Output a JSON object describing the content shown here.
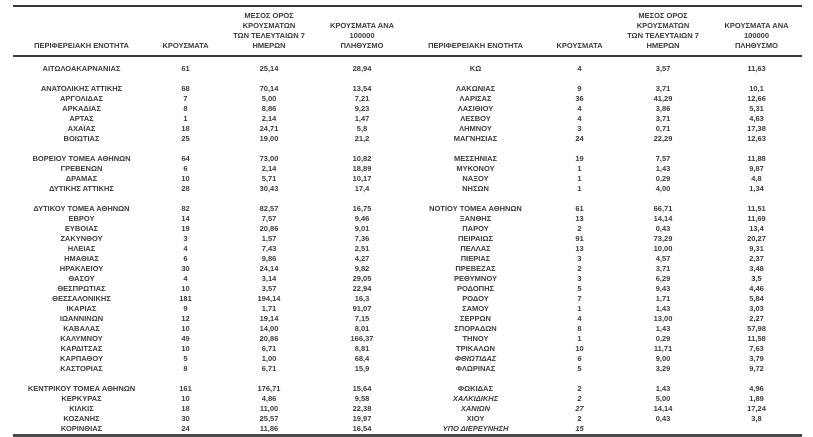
{
  "page": {
    "background": "#ffffff",
    "text_color": "#3d3d3d",
    "border_color": "#3a3a3a"
  },
  "table": {
    "headers": {
      "region": "ΠΕΡΙΦΕΡΕΙΑΚΗ ΕΝΟΤΗΤΑ",
      "cases": "ΚΡΟΥΣΜΑΤΑ",
      "avg7": "ΜΕΣΟΣ ΟΡΟΣ ΚΡΟΥΣΜΑΤΩΝ\nΤΩΝ ΤΕΛΕΥΤΑΙΩΝ 7\nΗΜΕΡΩΝ",
      "per100k": "ΚΡΟΥΣΜΑΤΑ ΑΝΑ 100000\nΠΛΗΘΥΣΜΟ"
    },
    "rows": [
      {
        "left": [
          "ΑΙΤΩΛΟΑΚΑΡΝΑΝΙΑΣ",
          "61",
          "25,14",
          "28,94"
        ],
        "right": [
          "ΚΩ",
          "4",
          "3,57",
          "11,63"
        ]
      },
      {
        "spacer": true
      },
      {
        "left": [
          "ΑΝΑΤΟΛΙΚΗΣ ΑΤΤΙΚΗΣ",
          "68",
          "70,14",
          "13,54"
        ],
        "right": [
          "ΛΑΚΩΝΙΑΣ",
          "9",
          "3,71",
          "10,1"
        ]
      },
      {
        "left": [
          "ΑΡΓΟΛΙΔΑΣ",
          "7",
          "5,00",
          "7,21"
        ],
        "right": [
          "ΛΑΡΙΣΑΣ",
          "36",
          "41,29",
          "12,66"
        ]
      },
      {
        "left": [
          "ΑΡΚΑΔΙΑΣ",
          "8",
          "8,86",
          "9,23"
        ],
        "right": [
          "ΛΑΣΙΘΙΟΥ",
          "4",
          "3,86",
          "5,31"
        ]
      },
      {
        "left": [
          "ΑΡΤΑΣ",
          "1",
          "2,14",
          "1,47"
        ],
        "right": [
          "ΛΕΣΒΟΥ",
          "4",
          "3,71",
          "4,63"
        ]
      },
      {
        "left": [
          "ΑΧΑΪΑΣ",
          "18",
          "24,71",
          "5,8"
        ],
        "right": [
          "ΛΗΜΝΟΥ",
          "3",
          "0,71",
          "17,38"
        ]
      },
      {
        "left": [
          "ΒΟΙΩΤΙΑΣ",
          "25",
          "19,00",
          "21,2"
        ],
        "right": [
          "ΜΑΓΝΗΣΙΑΣ",
          "24",
          "22,29",
          "12,63"
        ]
      },
      {
        "spacer": true
      },
      {
        "left": [
          "ΒΟΡΕΙΟΥ ΤΟΜΕΑ ΑΘΗΝΩΝ",
          "64",
          "73,00",
          "10,82"
        ],
        "right": [
          "ΜΕΣΣΗΝΙΑΣ",
          "19",
          "7,57",
          "11,88"
        ]
      },
      {
        "left": [
          "ΓΡΕΒΕΝΩΝ",
          "6",
          "2,14",
          "18,89"
        ],
        "right": [
          "ΜΥΚΟΝΟΥ",
          "1",
          "1,43",
          "9,87"
        ]
      },
      {
        "left": [
          "ΔΡΑΜΑΣ",
          "10",
          "5,71",
          "10,17"
        ],
        "right": [
          "ΝΑΞΟΥ",
          "1",
          "0,29",
          "4,8"
        ]
      },
      {
        "left": [
          "ΔΥΤΙΚΗΣ ΑΤΤΙΚΗΣ",
          "28",
          "30,43",
          "17,4"
        ],
        "right": [
          "ΝΗΣΩΝ",
          "1",
          "4,00",
          "1,34"
        ]
      },
      {
        "spacer": true
      },
      {
        "left": [
          "ΔΥΤΙΚΟΥ ΤΟΜΕΑ ΑΘΗΝΩΝ",
          "82",
          "82,57",
          "16,75"
        ],
        "right": [
          "ΝΟΤΙΟΥ ΤΟΜΕΑ ΑΘΗΝΩΝ",
          "61",
          "66,71",
          "11,51"
        ]
      },
      {
        "left": [
          "ΕΒΡΟΥ",
          "14",
          "7,57",
          "9,46"
        ],
        "right": [
          "ΞΑΝΘΗΣ",
          "13",
          "14,14",
          "11,69"
        ]
      },
      {
        "left": [
          "ΕΥΒΟΙΑΣ",
          "19",
          "20,86",
          "9,01"
        ],
        "right": [
          "ΠΑΡΟΥ",
          "2",
          "0,43",
          "13,4"
        ]
      },
      {
        "left": [
          "ΖΑΚΥΝΘΟΥ",
          "3",
          "1,57",
          "7,36"
        ],
        "right": [
          "ΠΕΙΡΑΙΩΣ",
          "91",
          "73,29",
          "20,27"
        ]
      },
      {
        "left": [
          "ΗΛΕΙΑΣ",
          "4",
          "7,43",
          "2,51"
        ],
        "right": [
          "ΠΕΛΛΑΣ",
          "13",
          "10,00",
          "9,31"
        ]
      },
      {
        "left": [
          "ΗΜΑΘΙΑΣ",
          "6",
          "9,86",
          "4,27"
        ],
        "right": [
          "ΠΙΕΡΙΑΣ",
          "3",
          "4,57",
          "2,37"
        ]
      },
      {
        "left": [
          "ΗΡΑΚΛΕΙΟΥ",
          "30",
          "24,14",
          "9,82"
        ],
        "right": [
          "ΠΡΕΒΕΖΑΣ",
          "2",
          "3,71",
          "3,48"
        ]
      },
      {
        "left": [
          "ΘΑΣΟΥ",
          "4",
          "3,14",
          "29,05"
        ],
        "right": [
          "ΡΕΘΥΜΝΟΥ",
          "3",
          "6,29",
          "3,5"
        ]
      },
      {
        "left": [
          "ΘΕΣΠΡΩΤΙΑΣ",
          "10",
          "3,57",
          "22,94"
        ],
        "right": [
          "ΡΟΔΟΠΗΣ",
          "5",
          "9,43",
          "4,46"
        ]
      },
      {
        "left": [
          "ΘΕΣΣΑΛΟΝΙΚΗΣ",
          "181",
          "194,14",
          "16,3"
        ],
        "right": [
          "ΡΟΔΟΥ",
          "7",
          "1,71",
          "5,84"
        ]
      },
      {
        "left": [
          "ΙΚΑΡΙΑΣ",
          "9",
          "1,71",
          "91,07"
        ],
        "right": [
          "ΣΑΜΟΥ",
          "1",
          "1,43",
          "3,03"
        ]
      },
      {
        "left": [
          "ΙΩΑΝΝΙΝΩΝ",
          "12",
          "19,14",
          "7,15"
        ],
        "right": [
          "ΣΕΡΡΩΝ",
          "4",
          "13,00",
          "2,27"
        ]
      },
      {
        "left": [
          "ΚΑΒΑΛΑΣ",
          "10",
          "14,00",
          "8,01"
        ],
        "right": [
          "ΣΠΟΡΑΔΩΝ",
          "8",
          "1,43",
          "57,98"
        ]
      },
      {
        "left": [
          "ΚΑΛΥΜΝΟΥ",
          "49",
          "20,86",
          "166,37"
        ],
        "right": [
          "ΤΗΝΟΥ",
          "1",
          "0,29",
          "11,58"
        ]
      },
      {
        "left": [
          "ΚΑΡΔΙΤΣΑΣ",
          "10",
          "6,71",
          "8,81"
        ],
        "right": [
          "ΤΡΙΚΑΛΩΝ",
          "10",
          "11,71",
          "7,63"
        ]
      },
      {
        "left": [
          "ΚΑΡΠΑΘΟΥ",
          "5",
          "1,00",
          "68,4"
        ],
        "right": [
          "ΦΘΙΩΤΙΔΑΣ",
          "6",
          "9,00",
          "3,79"
        ],
        "right_italic": [
          0,
          1
        ]
      },
      {
        "left": [
          "ΚΑΣΤΟΡΙΑΣ",
          "8",
          "6,71",
          "15,9"
        ],
        "right": [
          "ΦΛΩΡΙΝΑΣ",
          "5",
          "3,29",
          "9,72"
        ]
      },
      {
        "spacer": true
      },
      {
        "left": [
          "ΚΕΝΤΡΙΚΟΥ ΤΟΜΕΑ ΑΘΗΝΩΝ",
          "161",
          "176,71",
          "15,64"
        ],
        "right": [
          "ΦΩΚΙΔΑΣ",
          "2",
          "1,43",
          "4,96"
        ]
      },
      {
        "left": [
          "ΚΕΡΚΥΡΑΣ",
          "10",
          "4,86",
          "9,58"
        ],
        "right": [
          "ΧΑΛΚΙΔΙΚΗΣ",
          "2",
          "5,00",
          "1,89"
        ],
        "right_italic": [
          0,
          1
        ]
      },
      {
        "left": [
          "ΚΙΛΚΙΣ",
          "18",
          "11,00",
          "22,38"
        ],
        "right": [
          "ΧΑΝΙΩΝ",
          "27",
          "14,14",
          "17,24"
        ],
        "right_italic": [
          0,
          1
        ]
      },
      {
        "left": [
          "ΚΟΖΑΝΗΣ",
          "30",
          "25,57",
          "19,97"
        ],
        "right": [
          "ΧΙΟΥ",
          "2",
          "0,43",
          "3,8"
        ]
      },
      {
        "left": [
          "ΚΟΡΙΝΘΙΑΣ",
          "24",
          "11,86",
          "16,54"
        ],
        "right": [
          "ΥΠΟ ΔΙΕΡΕΥΝΗΣΗ",
          "15",
          "",
          ""
        ],
        "right_italic": [
          0,
          1
        ]
      }
    ]
  }
}
